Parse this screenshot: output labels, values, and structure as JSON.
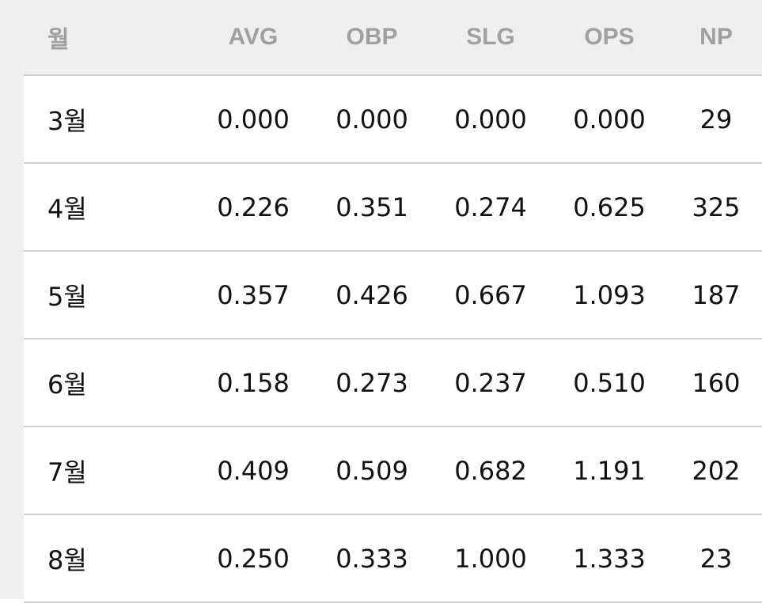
{
  "table": {
    "header": [
      "월",
      "AVG",
      "OBP",
      "SLG",
      "OPS",
      "NP"
    ],
    "rows": [
      [
        "3월",
        "0.000",
        "0.000",
        "0.000",
        "0.000",
        "29"
      ],
      [
        "4월",
        "0.226",
        "0.351",
        "0.274",
        "0.625",
        "325"
      ],
      [
        "5월",
        "0.357",
        "0.426",
        "0.667",
        "1.093",
        "187"
      ],
      [
        "6월",
        "0.158",
        "0.273",
        "0.237",
        "0.510",
        "160"
      ],
      [
        "7월",
        "0.409",
        "0.509",
        "0.682",
        "1.191",
        "202"
      ],
      [
        "8월",
        "0.250",
        "0.333",
        "1.000",
        "1.333",
        "23"
      ]
    ]
  }
}
